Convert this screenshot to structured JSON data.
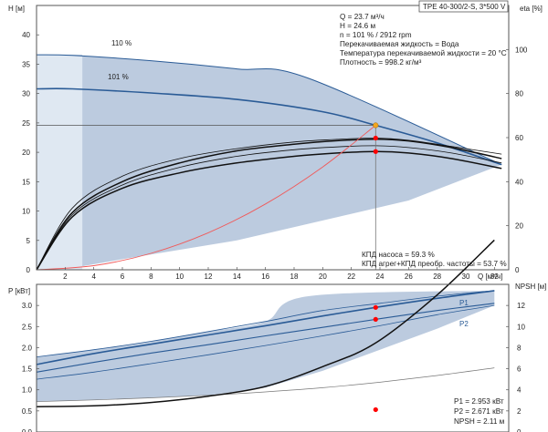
{
  "chart_data": [
    {
      "type": "line",
      "panel": "head-efficiency",
      "title": "TPE 40-300/2-S, 3*500 V",
      "xlabel": "Q [м³/ч]",
      "ylabel": "H [м]",
      "y2label": "eta [%]",
      "xlim": [
        0,
        33
      ],
      "ylim": [
        0,
        45
      ],
      "y2lim": [
        0,
        120
      ],
      "xticks": [
        "2",
        "4",
        "6",
        "8",
        "10",
        "12",
        "14",
        "16",
        "18",
        "20",
        "22",
        "24",
        "26",
        "28",
        "30",
        "32"
      ],
      "yticks": [
        "0",
        "5",
        "10",
        "15",
        "20",
        "25",
        "30",
        "35",
        "40"
      ],
      "y2ticks": [
        "0",
        "20",
        "40",
        "60",
        "80",
        "100"
      ],
      "grid": false,
      "series": [
        {
          "name": "110 %",
          "x": [
            0,
            2.5,
            8,
            14,
            19,
            32.5
          ],
          "y": [
            36.6,
            36.5,
            35.6,
            34.2,
            32.6,
            17.9
          ]
        },
        {
          "name": "101 %",
          "x": [
            0,
            2.5,
            8,
            14,
            20,
            23.7,
            28,
            32.5
          ],
          "y": [
            30.8,
            30.8,
            30.1,
            29.0,
            26.9,
            24.6,
            21.6,
            17.9
          ]
        },
        {
          "x": [
            0,
            2.5,
            6,
            10,
            14,
            18,
            21,
            23.7,
            26,
            29,
            32.5
          ],
          "y": [
            0,
            26.0,
            40.0,
            48.5,
            54.0,
            57.0,
            58.6,
            59.3,
            58.5,
            55.5,
            50.5
          ]
        },
        {
          "x": [
            0,
            2.5,
            6,
            10,
            14,
            18,
            21,
            23.7,
            26,
            29,
            32.5
          ],
          "y": [
            0,
            24.0,
            37.0,
            44.0,
            48.5,
            51.5,
            53.0,
            53.7,
            53.0,
            50.5,
            46.0
          ]
        },
        {
          "x": [
            0,
            2.5,
            6,
            10,
            14,
            18,
            21,
            23.7,
            26,
            29,
            32.5
          ],
          "y": [
            0,
            28.0,
            42.5,
            50.5,
            55.0,
            58.0,
            59.2,
            59.8,
            58.8,
            56.0,
            52.5
          ]
        },
        {
          "x": [
            0,
            2.5,
            6,
            10,
            14,
            18,
            21,
            23.7,
            26,
            29,
            32.5
          ],
          "y": [
            0,
            25.0,
            38.5,
            46.5,
            51.5,
            54.5,
            55.8,
            56.3,
            55.5,
            53.0,
            48.5
          ]
        },
        {
          "x": [
            0,
            4,
            8,
            12,
            16,
            20,
            23.7
          ],
          "y": [
            0,
            0.7,
            2.8,
            6.3,
            11.2,
            17.5,
            24.6
          ]
        }
      ],
      "duty_point": {
        "x": 23.7,
        "y": 24.6
      },
      "info": [
        "Q = 23.7 м³/ч",
        "H = 24.6 м",
        "n = 101 % / 2912 rpm",
        "Перекачиваемая жидкость = Вода",
        "Температура перекачиваемой жидкости = 20 °C",
        "Плотность = 998.2 кг/м³"
      ],
      "efficiency": [
        "КПД насоса = 59.3 %",
        "КПД агрег+КПД преобр. частоты = 53.7 %"
      ],
      "colors": {
        "area": "#bccbdf",
        "area_light": "#dfe8f2",
        "curve": "#2a5b96",
        "system": "#f05a5a",
        "marker": "#ff0000",
        "duty": "#f2a51e"
      }
    },
    {
      "type": "line",
      "panel": "power-npsh",
      "ylabel": "P [кВт]",
      "y2label": "NPSH [м]",
      "xlim": [
        0,
        33
      ],
      "ylim": [
        0,
        3.5
      ],
      "y2lim": [
        0,
        14
      ],
      "yticks": [
        "0.0",
        "0.5",
        "1.0",
        "1.5",
        "2.0",
        "2.5",
        "3.0"
      ],
      "y2ticks": [
        "0",
        "2",
        "4",
        "6",
        "8",
        "10",
        "12"
      ],
      "grid": false,
      "series": [
        {
          "name": "P1",
          "x": [
            0,
            4,
            8,
            12,
            16,
            20,
            23.7,
            28,
            32
          ],
          "y": [
            1.6,
            1.86,
            2.08,
            2.3,
            2.52,
            2.75,
            2.953,
            3.17,
            3.35
          ]
        },
        {
          "name": "P2",
          "x": [
            0,
            4,
            8,
            12,
            16,
            20,
            23.7,
            28,
            32
          ],
          "y": [
            1.42,
            1.65,
            1.87,
            2.07,
            2.28,
            2.48,
            2.671,
            2.88,
            3.05
          ]
        },
        {
          "x": [
            0,
            4,
            8,
            12,
            16,
            20,
            24,
            28,
            32
          ],
          "y": [
            0.72,
            0.76,
            0.81,
            0.87,
            0.95,
            1.05,
            1.18,
            1.34,
            1.52
          ]
        },
        {
          "x": [
            0,
            4,
            8,
            12,
            16,
            20,
            24,
            28,
            32
          ],
          "y": [
            1.78,
            1.95,
            2.15,
            2.38,
            2.62,
            2.88,
            3.05,
            3.22,
            3.35
          ]
        },
        {
          "x": [
            0,
            4,
            8,
            12,
            16,
            20,
            24,
            28,
            32
          ],
          "y": [
            1.25,
            1.42,
            1.62,
            1.83,
            2.05,
            2.28,
            2.52,
            2.78,
            3.0
          ]
        },
        {
          "name": "NPSH",
          "x": [
            0,
            4,
            8,
            12,
            16,
            20,
            23.7,
            28,
            32
          ],
          "y": [
            0.6,
            0.62,
            0.7,
            0.85,
            1.08,
            1.55,
            2.11,
            3.25,
            4.55
          ]
        }
      ],
      "markers": [
        {
          "x": 23.7,
          "y": 2.953
        },
        {
          "x": 23.7,
          "y": 2.671
        },
        {
          "x": 23.7,
          "y": 0.53
        }
      ],
      "readouts": [
        "P1 = 2.953 кВт",
        "P2 = 2.671 кВт",
        "NPSH = 2.11 м"
      ]
    }
  ]
}
